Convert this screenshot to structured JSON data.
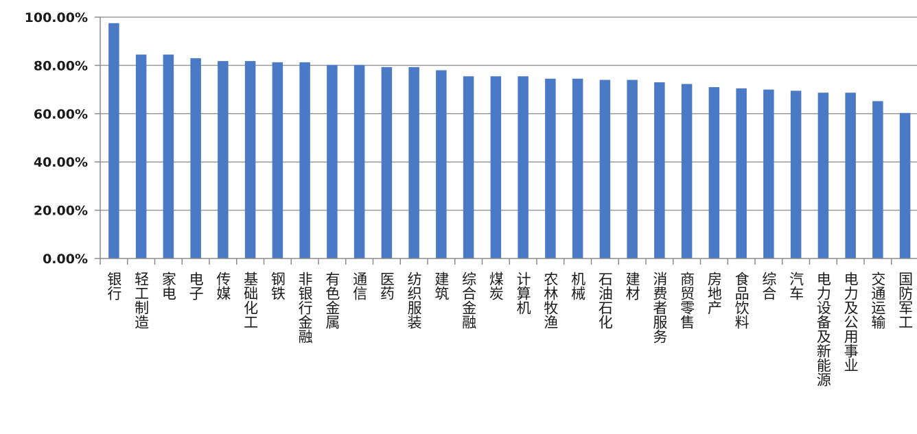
{
  "chart_data": {
    "type": "bar",
    "title": "",
    "xlabel": "",
    "ylabel": "",
    "ylim": [
      0,
      100
    ],
    "y_tick_labels": [
      "0.00%",
      "20.00%",
      "40.00%",
      "60.00%",
      "80.00%",
      "100.00%"
    ],
    "y_ticks": [
      0,
      20,
      40,
      60,
      80,
      100
    ],
    "grid": true,
    "bar_color": "#4a7ac6",
    "categories": [
      "银行",
      "轻工制造",
      "家电",
      "电子",
      "传媒",
      "基础化工",
      "钢铁",
      "非银行金融",
      "有色金属",
      "通信",
      "医药",
      "纺织服装",
      "建筑",
      "综合金融",
      "煤炭",
      "计算机",
      "农林牧渔",
      "机械",
      "石油石化",
      "建材",
      "消费者服务",
      "商贸零售",
      "房地产",
      "食品饮料",
      "综合",
      "汽车",
      "电力设备及新能源",
      "电力及公用事业",
      "交通运输",
      "国防军工"
    ],
    "values": [
      97.5,
      84.5,
      84.5,
      83,
      81.8,
      81.8,
      81.3,
      81.3,
      80.2,
      80.2,
      79.3,
      79.3,
      78,
      75.5,
      75.5,
      75.5,
      74.5,
      74.5,
      74,
      74,
      73,
      72.3,
      71,
      70.5,
      70,
      69.5,
      68.7,
      68.7,
      65.2,
      60.3
    ]
  }
}
